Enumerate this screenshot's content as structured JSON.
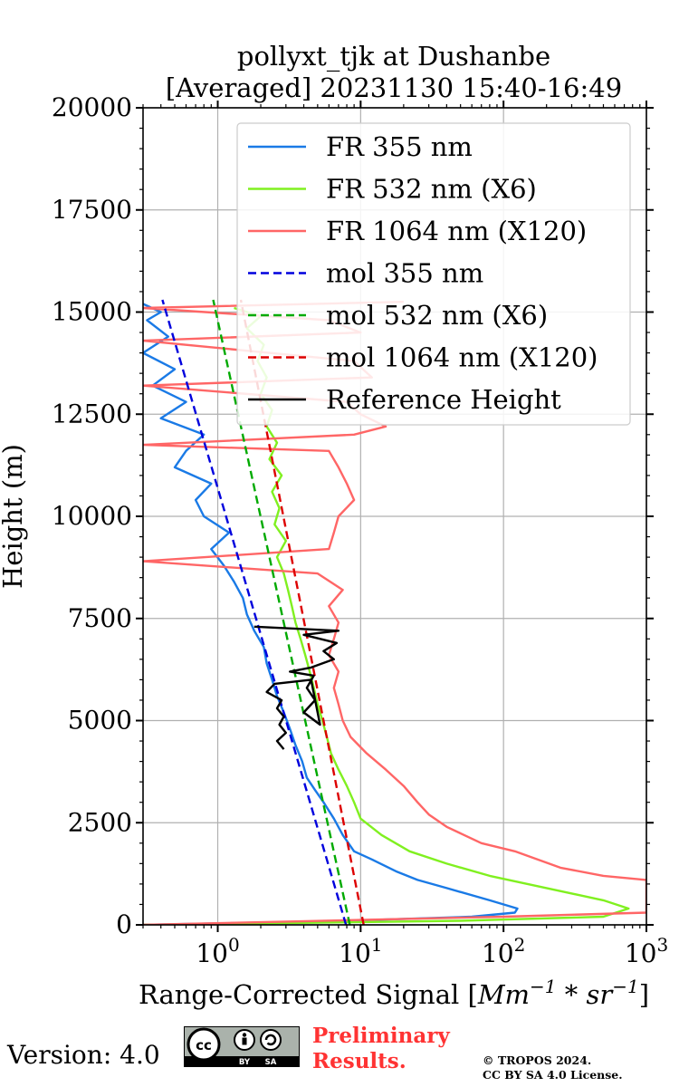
{
  "title_line1": "pollyxt_tjk at Dushanbe",
  "title_line2": "[Averaged] 20231130 15:40-16:49",
  "footer": {
    "version": "Version: 4.0",
    "preliminary_line1": "Preliminary",
    "preliminary_line2": "Results.",
    "copyright_line1": "© TROPOS 2024.",
    "copyright_line2": "CC BY SA 4.0 License.",
    "license_badge": "cc-by-sa-icon"
  },
  "chart_data": {
    "type": "line",
    "xlabel": "Range-Corrected Signal [Mm^-1*sr^-1]",
    "ylabel": "Height (m)",
    "xscale": "log",
    "xlim": [
      0.3,
      1000
    ],
    "ylim": [
      0,
      20000
    ],
    "xticks": [
      1,
      10,
      100,
      1000
    ],
    "xtick_labels": [
      [
        "10",
        "0"
      ],
      [
        "10",
        "1"
      ],
      [
        "10",
        "2"
      ],
      [
        "10",
        "3"
      ]
    ],
    "yticks": [
      0,
      2500,
      5000,
      7500,
      10000,
      12500,
      15000,
      17500,
      20000
    ],
    "ytick_labels": [
      "0",
      "2500",
      "5000",
      "7500",
      "10000",
      "12500",
      "15000",
      "17500",
      "20000"
    ],
    "grid": true,
    "legend_position": "top-right",
    "series": [
      {
        "name": "FR 355 nm",
        "color": "#1a7ae6",
        "style": "solid",
        "points": [
          [
            0.3,
            0
          ],
          [
            8,
            100
          ],
          [
            60,
            200
          ],
          [
            120,
            300
          ],
          [
            125,
            400
          ],
          [
            80,
            600
          ],
          [
            40,
            900
          ],
          [
            25,
            1100
          ],
          [
            18,
            1300
          ],
          [
            12,
            1600
          ],
          [
            9,
            1800
          ],
          [
            7.5,
            2200
          ],
          [
            6.5,
            2600
          ],
          [
            5.5,
            3000
          ],
          [
            4.8,
            3300
          ],
          [
            4.2,
            3600
          ],
          [
            3.9,
            4000
          ],
          [
            3.5,
            4400
          ],
          [
            3.2,
            4800
          ],
          [
            2.9,
            5200
          ],
          [
            2.6,
            5600
          ],
          [
            2.4,
            6000
          ],
          [
            2.2,
            6400
          ],
          [
            2.1,
            6800
          ],
          [
            1.8,
            7200
          ],
          [
            1.6,
            7600
          ],
          [
            1.5,
            8000
          ],
          [
            1.3,
            8400
          ],
          [
            1.1,
            8800
          ],
          [
            0.9,
            9200
          ],
          [
            1.2,
            9600
          ],
          [
            0.8,
            10000
          ],
          [
            0.7,
            10400
          ],
          [
            0.9,
            10800
          ],
          [
            0.5,
            11200
          ],
          [
            0.6,
            11600
          ],
          [
            0.8,
            12000
          ],
          [
            0.4,
            12400
          ],
          [
            0.6,
            12800
          ],
          [
            0.35,
            13200
          ],
          [
            0.5,
            13600
          ],
          [
            0.3,
            14000
          ],
          [
            0.45,
            14400
          ],
          [
            0.32,
            14800
          ],
          [
            0.4,
            15000
          ],
          [
            0.3,
            15200
          ]
        ]
      },
      {
        "name": "FR 532 nm (X6)",
        "color": "#80f020",
        "style": "solid",
        "points": [
          [
            0.3,
            0
          ],
          [
            50,
            100
          ],
          [
            500,
            200
          ],
          [
            750,
            400
          ],
          [
            500,
            600
          ],
          [
            200,
            900
          ],
          [
            80,
            1200
          ],
          [
            40,
            1500
          ],
          [
            22,
            1800
          ],
          [
            14,
            2200
          ],
          [
            10,
            2600
          ],
          [
            9,
            3000
          ],
          [
            8,
            3400
          ],
          [
            7,
            3800
          ],
          [
            6.2,
            4200
          ],
          [
            5.8,
            4600
          ],
          [
            5.4,
            5000
          ],
          [
            5,
            5400
          ],
          [
            4.7,
            5800
          ],
          [
            4.4,
            6200
          ],
          [
            4.1,
            6600
          ],
          [
            3.8,
            7000
          ],
          [
            3.5,
            7400
          ],
          [
            3.3,
            7800
          ],
          [
            3.1,
            8200
          ],
          [
            2.9,
            8600
          ],
          [
            2.6,
            9000
          ],
          [
            3,
            9400
          ],
          [
            2.5,
            9800
          ],
          [
            2.7,
            10200
          ],
          [
            2.4,
            10600
          ],
          [
            2.8,
            11000
          ],
          [
            2.3,
            11400
          ],
          [
            2.6,
            11800
          ],
          [
            2.2,
            12200
          ],
          [
            2.4,
            12600
          ],
          [
            2,
            13000
          ],
          [
            2.2,
            13400
          ],
          [
            1.9,
            13800
          ],
          [
            2.1,
            14200
          ],
          [
            1.6,
            14600
          ],
          [
            2,
            14900
          ],
          [
            1.3,
            15100
          ]
        ]
      },
      {
        "name": "FR 1064 nm (X120)",
        "color": "#ff6666",
        "style": "solid",
        "points": [
          [
            0.3,
            0
          ],
          [
            100,
            200
          ],
          [
            1000,
            300
          ],
          [
            1000,
            1100
          ],
          [
            500,
            1200
          ],
          [
            250,
            1400
          ],
          [
            120,
            1800
          ],
          [
            70,
            2000
          ],
          [
            40,
            2400
          ],
          [
            30,
            2700
          ],
          [
            25,
            3000
          ],
          [
            20,
            3400
          ],
          [
            15,
            3800
          ],
          [
            11,
            4200
          ],
          [
            8.5,
            4600
          ],
          [
            7.5,
            5000
          ],
          [
            7,
            5400
          ],
          [
            6.5,
            5800
          ],
          [
            7,
            6200
          ],
          [
            6,
            6600
          ],
          [
            6.5,
            7000
          ],
          [
            7,
            7400
          ],
          [
            6,
            7800
          ],
          [
            7.5,
            8200
          ],
          [
            5,
            8600
          ],
          [
            0.3,
            8900
          ],
          [
            6,
            9200
          ],
          [
            6.5,
            9600
          ],
          [
            7,
            10000
          ],
          [
            9,
            10400
          ],
          [
            8,
            10800
          ],
          [
            7,
            11200
          ],
          [
            6,
            11600
          ],
          [
            0.3,
            11750
          ],
          [
            9,
            12000
          ],
          [
            15,
            12200
          ],
          [
            10,
            12500
          ],
          [
            8,
            12800
          ],
          [
            0.3,
            13200
          ],
          [
            12,
            13400
          ],
          [
            9,
            13800
          ],
          [
            0.3,
            14300
          ],
          [
            10,
            14500
          ],
          [
            6,
            14800
          ],
          [
            0.3,
            15100
          ],
          [
            20,
            15250
          ]
        ]
      },
      {
        "name": "mol 355 nm",
        "color": "#0000dd",
        "style": "dashed",
        "points": [
          [
            7.9,
            0
          ],
          [
            0.41,
            15300
          ]
        ]
      },
      {
        "name": "mol 532 nm (X6)",
        "color": "#00aa00",
        "style": "dashed",
        "points": [
          [
            8.4,
            0
          ],
          [
            0.93,
            15300
          ]
        ]
      },
      {
        "name": "mol 1064 nm (X120)",
        "color": "#dd0000",
        "style": "dashed",
        "points": [
          [
            10.5,
            0
          ],
          [
            1.45,
            15300
          ]
        ]
      },
      {
        "name": "Reference Height",
        "color": "#000000",
        "style": "solid",
        "points": [
          [
            2.9,
            4300
          ],
          [
            2.6,
            4500
          ],
          [
            3.0,
            4700
          ],
          [
            2.7,
            4900
          ],
          [
            2.9,
            5100
          ],
          [
            2.6,
            5300
          ],
          [
            2.8,
            5500
          ],
          [
            2.2,
            5700
          ],
          [
            2.5,
            5900
          ],
          [
            4.5,
            6000
          ],
          [
            5.2,
            4900
          ],
          [
            4.0,
            5200
          ],
          [
            4.8,
            5500
          ],
          [
            4.2,
            5800
          ],
          [
            4.7,
            6100
          ],
          [
            3.2,
            6200
          ],
          [
            4.5,
            6300
          ],
          [
            6.5,
            6500
          ],
          [
            5.5,
            6700
          ],
          [
            6.8,
            6900
          ],
          [
            4.0,
            7100
          ],
          [
            7.0,
            7200
          ],
          [
            1.8,
            7300
          ]
        ]
      }
    ]
  }
}
